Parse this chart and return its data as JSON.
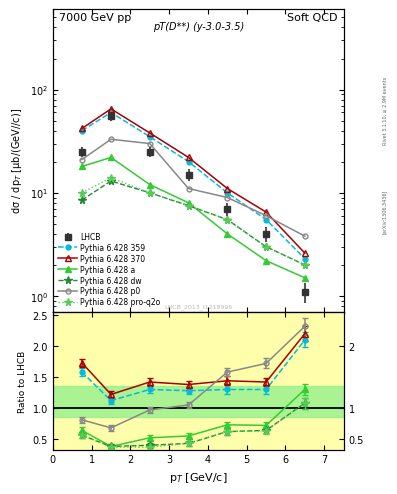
{
  "title_left": "7000 GeV pp",
  "title_right": "Soft QCD",
  "plot_label": "pT(D**) (y-3.0-3.5)",
  "watermark": "LHCB_2013_I1218996",
  "right_label_top": "Rivet 3.1.10, ≥ 2.9M events",
  "right_label_bot": "[arXiv:1306.3436]",
  "pt_lhcb": [
    0.75,
    1.5,
    2.5,
    3.5,
    4.5,
    5.5,
    6.5
  ],
  "y_lhcb": [
    25.0,
    55.0,
    25.0,
    15.0,
    7.0,
    4.0,
    1.1
  ],
  "y_lhcb_err": [
    3.0,
    5.0,
    3.0,
    2.0,
    1.0,
    0.7,
    0.25
  ],
  "pt_mc": [
    0.75,
    1.5,
    2.5,
    3.5,
    4.5,
    5.5,
    6.5
  ],
  "y_359": [
    40.0,
    60.0,
    35.0,
    20.0,
    10.0,
    5.5,
    2.3
  ],
  "y_370": [
    42.0,
    65.0,
    38.0,
    22.0,
    11.0,
    6.5,
    2.6
  ],
  "y_a": [
    18.0,
    22.0,
    12.0,
    8.0,
    4.0,
    2.2,
    1.5
  ],
  "y_dw": [
    8.5,
    13.0,
    10.0,
    7.5,
    5.5,
    3.0,
    2.0
  ],
  "y_p0": [
    21.0,
    33.0,
    30.0,
    11.0,
    9.0,
    6.0,
    3.8
  ],
  "y_proq2o": [
    10.0,
    14.0,
    10.0,
    7.5,
    5.5,
    3.0,
    2.0
  ],
  "ratio_359": [
    1.58,
    1.12,
    1.3,
    1.28,
    1.3,
    1.3,
    2.1
  ],
  "ratio_370": [
    1.73,
    1.22,
    1.42,
    1.38,
    1.44,
    1.42,
    2.2
  ],
  "ratio_a": [
    0.64,
    0.38,
    0.52,
    0.55,
    0.73,
    0.72,
    1.3
  ],
  "ratio_dw": [
    0.56,
    0.38,
    0.4,
    0.43,
    0.62,
    0.64,
    1.08
  ],
  "ratio_p0": [
    0.81,
    0.68,
    0.97,
    1.05,
    1.58,
    1.72,
    2.32
  ],
  "ratio_proq2o": [
    0.57,
    0.37,
    0.37,
    0.43,
    0.62,
    0.63,
    1.08
  ],
  "ratio_359_err": [
    0.06,
    0.05,
    0.06,
    0.06,
    0.07,
    0.07,
    0.12
  ],
  "ratio_370_err": [
    0.06,
    0.05,
    0.06,
    0.06,
    0.07,
    0.07,
    0.12
  ],
  "ratio_a_err": [
    0.05,
    0.04,
    0.04,
    0.04,
    0.05,
    0.05,
    0.09
  ],
  "ratio_dw_err": [
    0.05,
    0.04,
    0.04,
    0.04,
    0.05,
    0.05,
    0.09
  ],
  "ratio_p0_err": [
    0.05,
    0.05,
    0.05,
    0.05,
    0.07,
    0.08,
    0.14
  ],
  "ratio_proq2o_err": [
    0.05,
    0.04,
    0.04,
    0.04,
    0.05,
    0.05,
    0.09
  ],
  "color_lhcb": "#333333",
  "color_359": "#00bbdd",
  "color_370": "#aa0000",
  "color_a": "#33cc33",
  "color_dw": "#228833",
  "color_p0": "#888888",
  "color_proq2o": "#55cc55",
  "xlim": [
    0,
    7.5
  ],
  "ylim_main": [
    0.7,
    600
  ],
  "ylim_ratio": [
    0.33,
    2.55
  ],
  "ylabel_main": "dσ / dp$_T$ [μb/(GeV//c)]",
  "ylabel_ratio": "Ratio to LHCB",
  "xlabel": "p$_T$ [GeV/c]"
}
